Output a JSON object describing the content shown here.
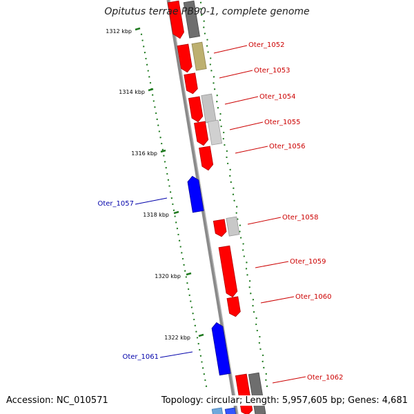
{
  "title": "Opitutus terrae PB90-1, complete genome",
  "accession": "Accession: NC_010571",
  "summary": "Topology: circular; Length: 5,957,605 bp; Genes: 4,681",
  "bottom_tick": "13",
  "colors": {
    "forward_gene": "#ff0000",
    "reverse_gene": "#0000ff",
    "forward_label": "#cc0000",
    "reverse_label": "#0000aa",
    "gc_dots": "#1f7a1f",
    "backbone": "#777777"
  },
  "scale_labels": [
    "1312 kbp",
    "1314 kbp",
    "1316 kbp",
    "1318 kbp",
    "1320 kbp",
    "1322 kbp"
  ],
  "gene_labels": [
    {
      "text": "Oter_1052",
      "strand": "forward"
    },
    {
      "text": "Oter_1053",
      "strand": "forward"
    },
    {
      "text": "Oter_1054",
      "strand": "forward"
    },
    {
      "text": "Oter_1055",
      "strand": "forward"
    },
    {
      "text": "Oter_1056",
      "strand": "forward"
    },
    {
      "text": "Oter_1057",
      "strand": "reverse"
    },
    {
      "text": "Oter_1058",
      "strand": "forward"
    },
    {
      "text": "Oter_1059",
      "strand": "forward"
    },
    {
      "text": "Oter_1060",
      "strand": "forward"
    },
    {
      "text": "Oter_1061",
      "strand": "reverse"
    },
    {
      "text": "Oter_1062",
      "strand": "forward"
    }
  ]
}
